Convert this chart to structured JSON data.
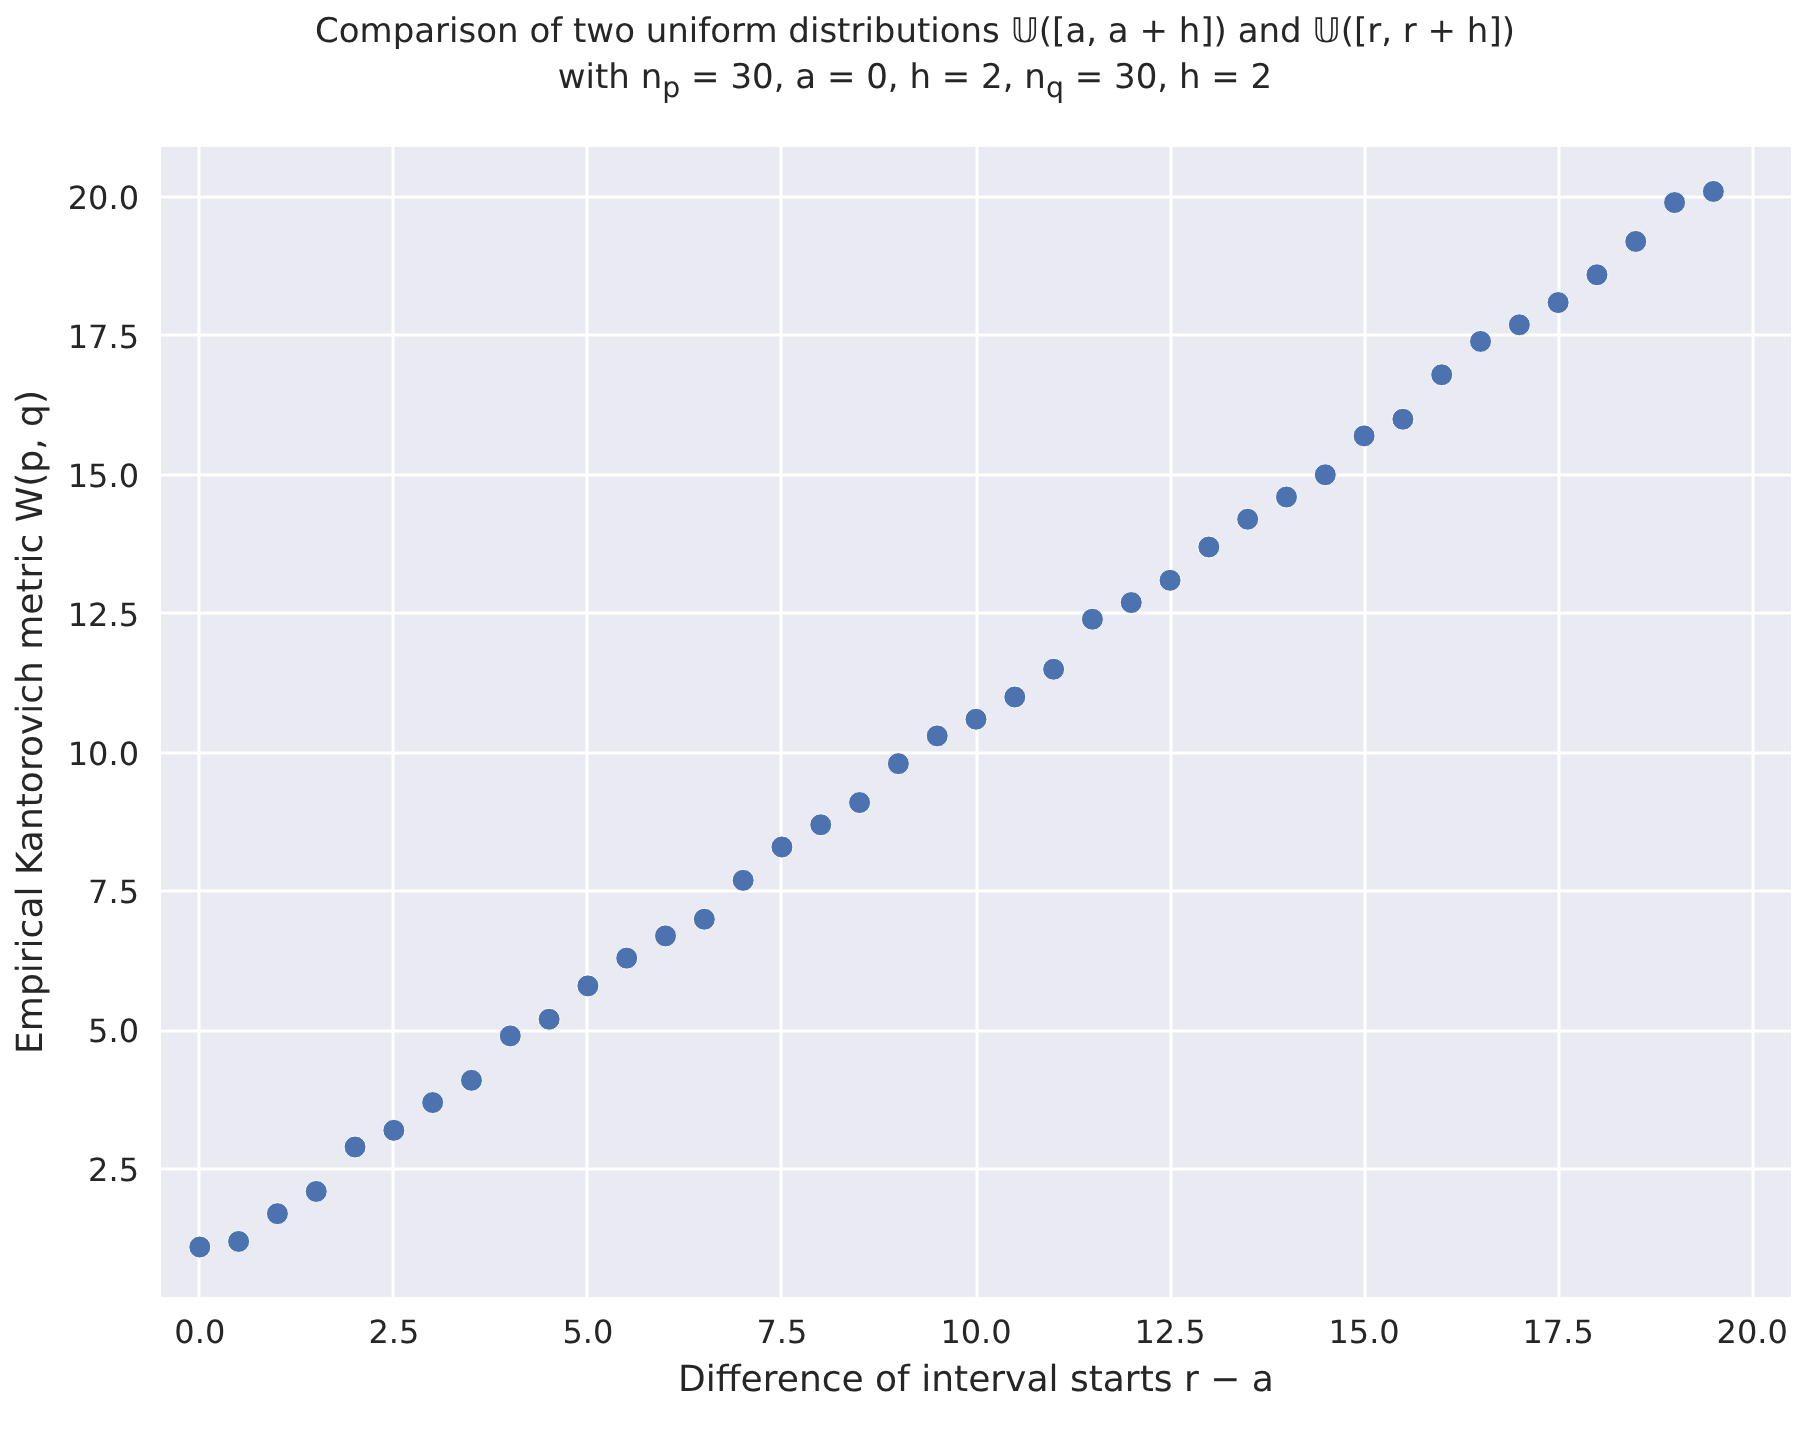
{
  "chart_data": {
    "type": "scatter",
    "title": "Comparison of two uniform distributions 𝕌([a, a + h]) and 𝕌([r, r + h])",
    "subtitle": "with n$_{p}$ = 30, a = 0, h = 2, n$_{q}$ = 30, h = 2",
    "xlabel": "Difference of interval starts r − a",
    "ylabel": "Empirical Kantorovich metric W(p, q)",
    "x": [
      0,
      0.5,
      1,
      1.5,
      2,
      2.5,
      3,
      3.5,
      4,
      4.5,
      5,
      5.5,
      6,
      6.5,
      7,
      7.5,
      8,
      8.5,
      9,
      9.5,
      10,
      10.5,
      11,
      11.5,
      12,
      12.5,
      13,
      13.5,
      14,
      14.5,
      15,
      15.5,
      16,
      16.5,
      17,
      17.5,
      18,
      18.5,
      19,
      19.5
    ],
    "series": [
      {
        "color": "#4c72b0",
        "values": [
          1.1,
          1.2,
          1.7,
          2.1,
          2.9,
          3.2,
          3.7,
          4.1,
          4.9,
          5.2,
          5.8,
          6.3,
          6.7,
          7.0,
          7.7,
          8.3,
          8.7,
          9.1,
          9.8,
          10.3,
          10.6,
          11.0,
          11.5,
          12.4,
          12.7,
          13.1,
          13.7,
          14.2,
          14.6,
          15.0,
          15.7,
          16.0,
          16.8,
          17.4,
          17.7,
          18.1,
          18.6,
          19.2,
          19.9,
          20.1
        ]
      }
    ],
    "xlim": [
      -0.5,
      20.5
    ],
    "ylim": [
      0.2,
      20.9
    ],
    "xticks": [
      {
        "value": 0,
        "label": "0.0"
      },
      {
        "value": 2.5,
        "label": "2.5"
      },
      {
        "value": 5,
        "label": "5.0"
      },
      {
        "value": 7.5,
        "label": "7.5"
      },
      {
        "value": 10,
        "label": "10.0"
      },
      {
        "value": 12.5,
        "label": "12.5"
      },
      {
        "value": 15,
        "label": "15.0"
      },
      {
        "value": 17.5,
        "label": "17.5"
      },
      {
        "value": 20,
        "label": "20.0"
      }
    ],
    "yticks": [
      {
        "value": 2.5,
        "label": "2.5"
      },
      {
        "value": 5,
        "label": "5.0"
      },
      {
        "value": 7.5,
        "label": "7.5"
      },
      {
        "value": 10,
        "label": "10.0"
      },
      {
        "value": 12.5,
        "label": "12.5"
      },
      {
        "value": 15,
        "label": "15.0"
      },
      {
        "value": 17.5,
        "label": "17.5"
      },
      {
        "value": 20,
        "label": "20.0"
      }
    ],
    "grid": true,
    "marker": "circle"
  }
}
